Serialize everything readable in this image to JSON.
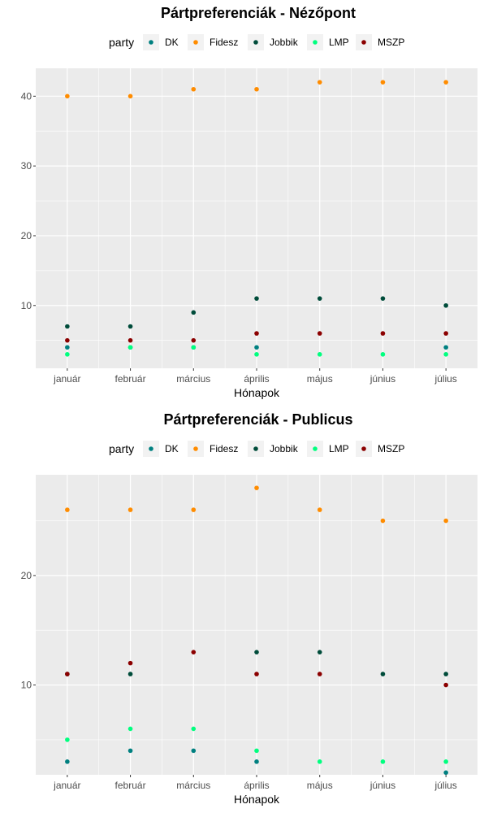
{
  "chart_data": [
    {
      "type": "scatter",
      "title": "Pártpreferenciák - Nézőpont",
      "xlabel": "Hónapok",
      "ylabel": "",
      "legend_title": "party",
      "legend_position": "top",
      "categories": [
        "január",
        "február",
        "március",
        "április",
        "május",
        "június",
        "július"
      ],
      "ylim": [
        1,
        44
      ],
      "yticks": [
        10,
        20,
        30,
        40
      ],
      "grid": true,
      "series": [
        {
          "name": "DK",
          "color": "#008080",
          "values": [
            4,
            4,
            4,
            4,
            null,
            null,
            4
          ]
        },
        {
          "name": "Fidesz",
          "color": "#FF8C00",
          "values": [
            40,
            40,
            41,
            41,
            42,
            42,
            42
          ]
        },
        {
          "name": "Jobbik",
          "color": "#004C3A",
          "values": [
            7,
            7,
            9,
            11,
            11,
            11,
            10
          ]
        },
        {
          "name": "LMP",
          "color": "#00FF7F",
          "values": [
            3,
            4,
            4,
            3,
            3,
            3,
            3
          ]
        },
        {
          "name": "MSZP",
          "color": "#8B0000",
          "values": [
            5,
            5,
            5,
            6,
            6,
            6,
            6
          ]
        }
      ]
    },
    {
      "type": "scatter",
      "title": "Pártpreferenciák - Publicus",
      "xlabel": "Hónapok",
      "ylabel": "",
      "legend_title": "party",
      "legend_position": "top",
      "categories": [
        "január",
        "február",
        "március",
        "április",
        "május",
        "június",
        "július"
      ],
      "ylim": [
        1.8,
        29.2
      ],
      "yticks": [
        10,
        20
      ],
      "grid": true,
      "series": [
        {
          "name": "DK",
          "color": "#008080",
          "values": [
            3,
            4,
            4,
            3,
            null,
            null,
            2
          ]
        },
        {
          "name": "Fidesz",
          "color": "#FF8C00",
          "values": [
            26,
            26,
            26,
            28,
            26,
            25,
            25
          ]
        },
        {
          "name": "Jobbik",
          "color": "#004C3A",
          "values": [
            11,
            11,
            null,
            13,
            13,
            11,
            11
          ]
        },
        {
          "name": "LMP",
          "color": "#00FF7F",
          "values": [
            5,
            6,
            6,
            4,
            3,
            3,
            3
          ]
        },
        {
          "name": "MSZP",
          "color": "#8B0000",
          "values": [
            11,
            12,
            13,
            11,
            11,
            null,
            10
          ]
        }
      ]
    }
  ]
}
